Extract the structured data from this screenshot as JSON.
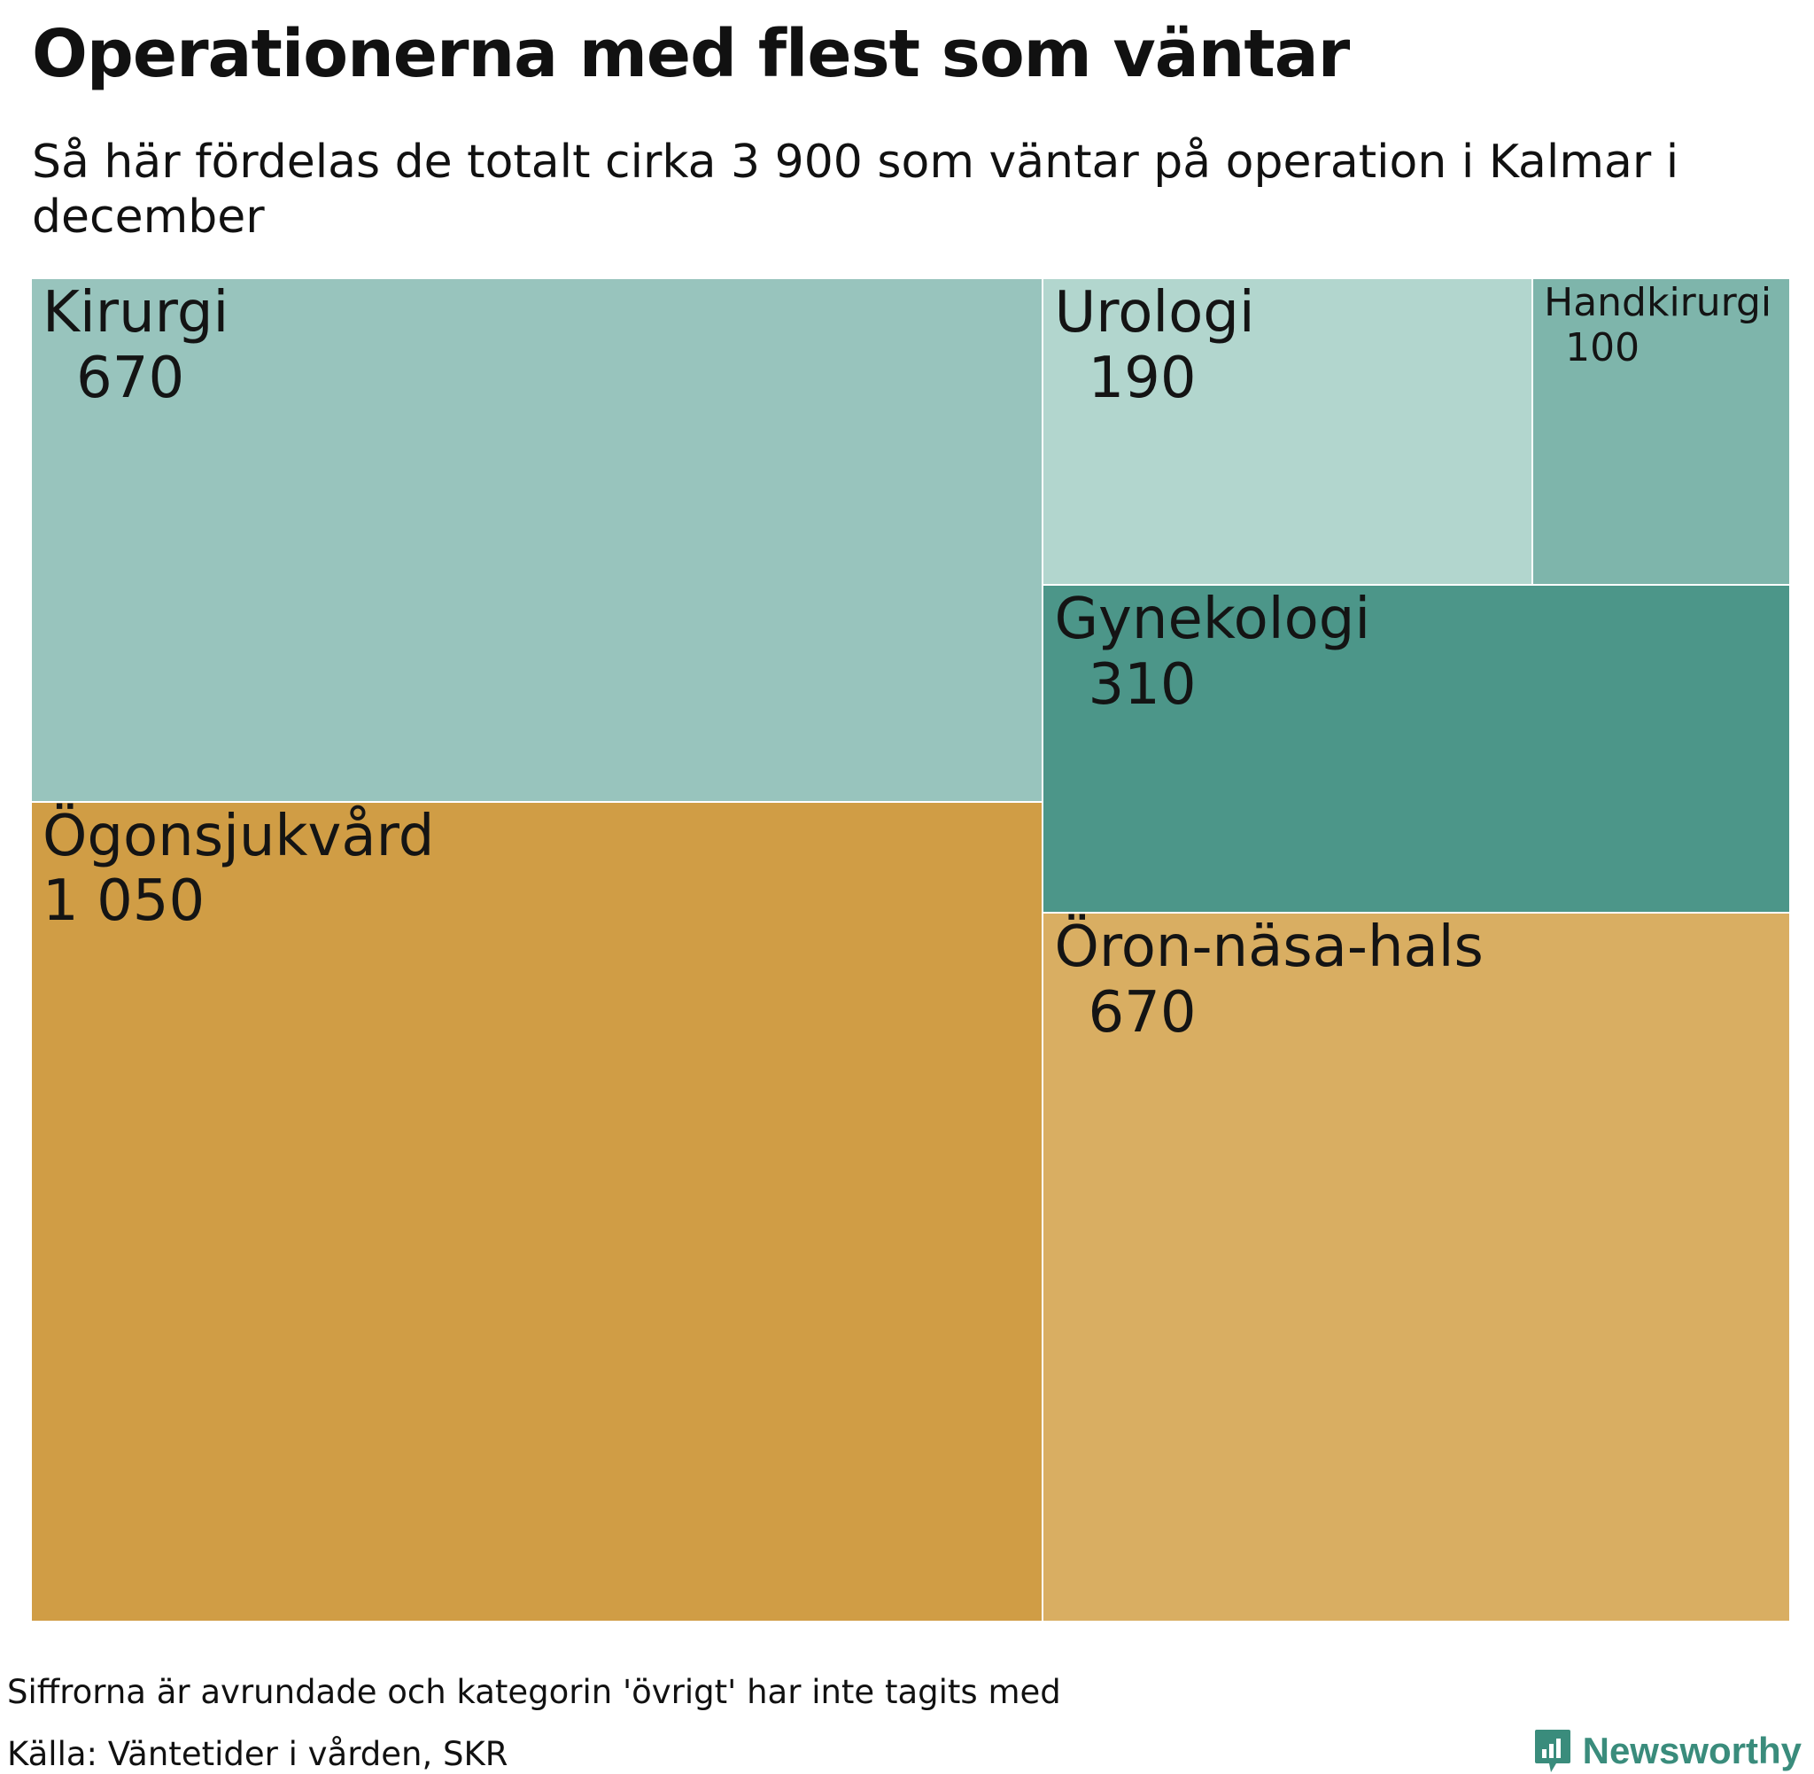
{
  "header": {
    "title": "Operationerna med flest som väntar",
    "subtitle": "Så här fördelas de totalt cirka 3 900 som väntar på operation i Kalmar i december"
  },
  "chart_data": {
    "type": "treemap",
    "title": "Operationerna med flest som väntar",
    "subtitle": "Så här fördelas de totalt cirka 3 900 som väntar på operation i Kalmar i december",
    "items": [
      {
        "name": "Ögonsjukvård",
        "value": 1050,
        "value_label": "1 050",
        "color": "#d09d45"
      },
      {
        "name": "Kirurgi",
        "value": 670,
        "value_label": "670",
        "color": "#98c4bd"
      },
      {
        "name": "Öron-näsa-hals",
        "value": 670,
        "value_label": "670",
        "color": "#d9ae62"
      },
      {
        "name": "Gynekologi",
        "value": 310,
        "value_label": "310",
        "color": "#4c9689"
      },
      {
        "name": "Urologi",
        "value": 190,
        "value_label": "190",
        "color": "#b2d6ce"
      },
      {
        "name": "Handkirurgi",
        "value": 100,
        "value_label": "100",
        "color": "#7eb5ab"
      }
    ]
  },
  "footer": {
    "note": "Siffrorna är avrundade och kategorin 'övrigt' har inte tagits med",
    "source": "Källa: Väntetider i vården, SKR",
    "brand": "Newsworthy",
    "brand_icon": "bar-chart-speech-bubble-icon",
    "brand_color": "#3a8c7c"
  }
}
